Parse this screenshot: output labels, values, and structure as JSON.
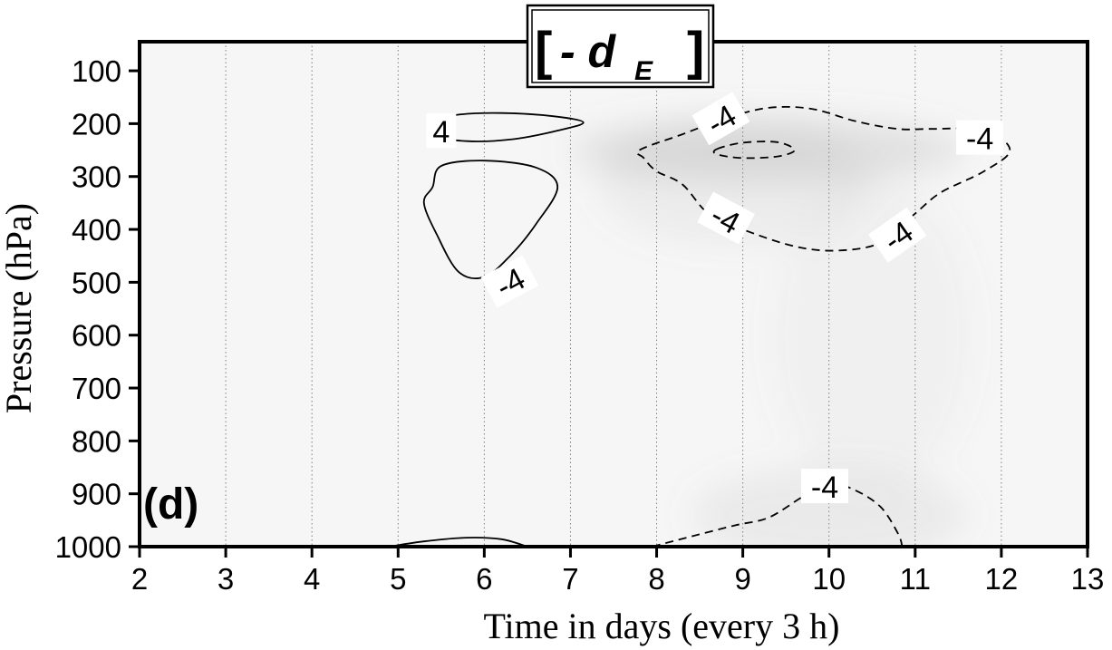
{
  "chart_data": {
    "type": "heatmap",
    "title_main": "- d",
    "title_subscript": "E",
    "panel_label": "(d)",
    "xlabel": "Time in days (every 3 h)",
    "ylabel": "Pressure (hPa)",
    "xlim": [
      2,
      13
    ],
    "ylim": [
      1000,
      45
    ],
    "y_inverted": true,
    "xticks": [
      2,
      3,
      4,
      5,
      6,
      7,
      8,
      9,
      10,
      11,
      12,
      13
    ],
    "xtick_labels": [
      "2",
      "3",
      "4",
      "5",
      "6",
      "7",
      "8",
      "9",
      "10",
      "11",
      "12",
      "13"
    ],
    "yticks": [
      100,
      200,
      300,
      400,
      500,
      600,
      700,
      800,
      900,
      1000
    ],
    "ytick_labels": [
      "100",
      "200",
      "300",
      "400",
      "500",
      "600",
      "700",
      "800",
      "900",
      "1000"
    ],
    "grid": "vertical dotted lines at each day",
    "contour_levels": [
      -4,
      4
    ],
    "contours": [
      {
        "level": 4,
        "style": "solid",
        "closed": true,
        "points": [
          [
            5.4,
            222
          ],
          [
            5.8,
            233
          ],
          [
            6.3,
            230
          ],
          [
            6.8,
            215
          ],
          [
            7.15,
            198
          ],
          [
            6.8,
            186
          ],
          [
            6.2,
            180
          ],
          [
            5.7,
            183
          ],
          [
            5.4,
            195
          ]
        ]
      },
      {
        "level": 4,
        "style": "solid",
        "closed": true,
        "points": [
          [
            5.4,
            320
          ],
          [
            5.5,
            280
          ],
          [
            6.0,
            270
          ],
          [
            6.6,
            283
          ],
          [
            6.85,
            320
          ],
          [
            6.6,
            390
          ],
          [
            6.3,
            450
          ],
          [
            6.0,
            490
          ],
          [
            5.7,
            480
          ],
          [
            5.45,
            410
          ],
          [
            5.3,
            350
          ]
        ]
      },
      {
        "level": 4,
        "style": "solid",
        "closed": false,
        "points": [
          [
            4.9,
            1000
          ],
          [
            5.3,
            990
          ],
          [
            5.8,
            983
          ],
          [
            6.2,
            986
          ],
          [
            6.5,
            1000
          ]
        ]
      },
      {
        "level": -4,
        "style": "dashed",
        "closed": true,
        "points": [
          [
            7.8,
            250
          ],
          [
            8.3,
            220
          ],
          [
            8.8,
            190
          ],
          [
            9.3,
            170
          ],
          [
            9.8,
            172
          ],
          [
            10.3,
            195
          ],
          [
            10.8,
            210
          ],
          [
            11.2,
            210
          ],
          [
            11.8,
            212
          ],
          [
            12.1,
            250
          ],
          [
            11.8,
            290
          ],
          [
            11.3,
            330
          ],
          [
            11.0,
            370
          ],
          [
            10.6,
            425
          ],
          [
            10.1,
            440
          ],
          [
            9.6,
            432
          ],
          [
            9.0,
            400
          ],
          [
            8.6,
            370
          ],
          [
            8.3,
            315
          ],
          [
            8.0,
            290
          ],
          [
            7.85,
            265
          ]
        ]
      },
      {
        "level": -4,
        "style": "dashed",
        "closed": true,
        "points": [
          [
            8.7,
            248
          ],
          [
            9.0,
            236
          ],
          [
            9.4,
            235
          ],
          [
            9.6,
            250
          ],
          [
            9.4,
            262
          ],
          [
            9.0,
            265
          ],
          [
            8.7,
            258
          ]
        ]
      },
      {
        "level": -4,
        "style": "dashed",
        "closed": false,
        "points": [
          [
            7.95,
            1000
          ],
          [
            8.3,
            985
          ],
          [
            8.9,
            960
          ],
          [
            9.3,
            945
          ],
          [
            9.7,
            905
          ],
          [
            10.0,
            880
          ],
          [
            10.3,
            893
          ],
          [
            10.6,
            925
          ],
          [
            10.8,
            975
          ],
          [
            10.85,
            1000
          ]
        ]
      }
    ],
    "contour_labels": [
      {
        "text": "4",
        "x": 5.5,
        "p": 215,
        "rotate": 0
      },
      {
        "text": "-4",
        "x": 6.3,
        "p": 500,
        "rotate": -28
      },
      {
        "text": "-4",
        "x": 8.75,
        "p": 192,
        "rotate": -30
      },
      {
        "text": "-4",
        "x": 11.75,
        "p": 228,
        "rotate": 0
      },
      {
        "text": "-4",
        "x": 8.8,
        "p": 380,
        "rotate": 28
      },
      {
        "text": "-4",
        "x": 10.8,
        "p": 412,
        "rotate": -35
      },
      {
        "text": "-4",
        "x": 9.95,
        "p": 887,
        "rotate": 0
      }
    ],
    "shading": [
      {
        "x": 9.3,
        "p": 250,
        "rx": 2.3,
        "rp": 60,
        "value": 0.22
      },
      {
        "x": 8.9,
        "p": 310,
        "rx": 1.6,
        "rp": 120,
        "value": 0.1
      },
      {
        "x": 10.0,
        "p": 940,
        "rx": 1.6,
        "rp": 90,
        "value": 0.12
      },
      {
        "x": 10.5,
        "p": 600,
        "rx": 1.2,
        "rp": 300,
        "value": 0.05
      }
    ],
    "colors": {
      "shade": "#909090",
      "line": "#000000",
      "grid": "#808080",
      "background": "#f6f6f6"
    }
  }
}
